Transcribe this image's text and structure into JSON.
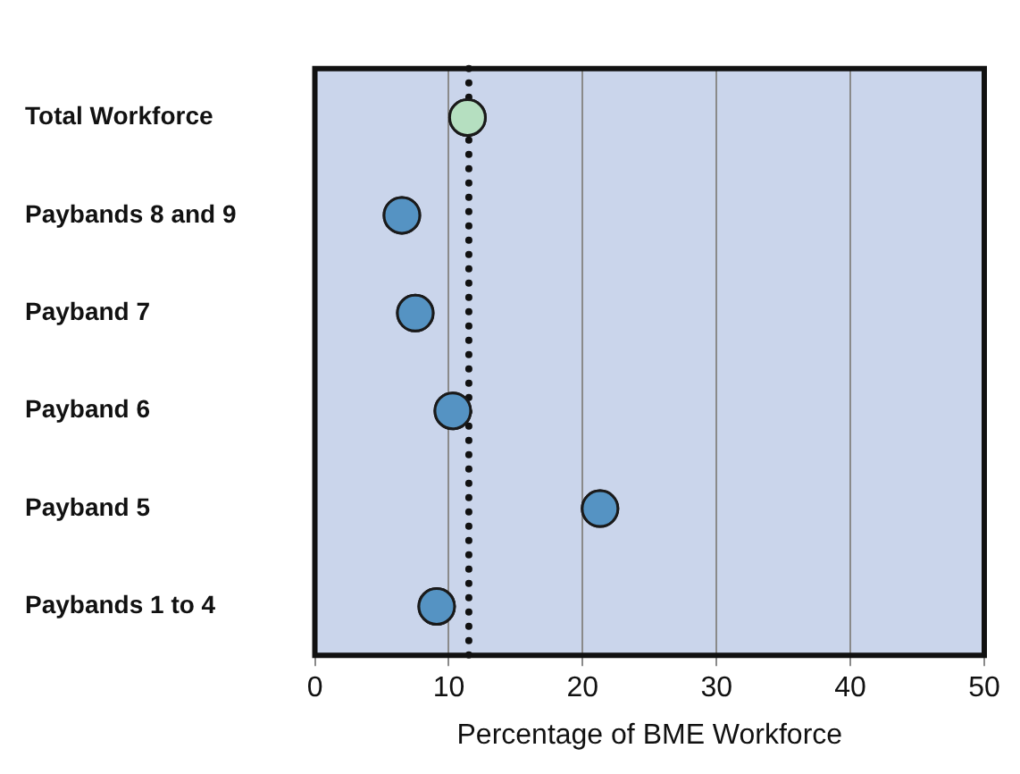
{
  "chart_data": {
    "type": "scatter",
    "orientation": "horizontal",
    "xlabel": "Percentage of BME Workforce",
    "categories": [
      "Total Workforce",
      "Paybands 8 and 9",
      "Payband 7",
      "Payband 6",
      "Payband 5",
      "Paybands 1 to 4"
    ],
    "values": [
      11.4,
      6.5,
      7.5,
      10.3,
      21.3,
      9.1
    ],
    "colors": [
      "#b5dfc0",
      "#5593c3",
      "#5593c3",
      "#5593c3",
      "#5593c3",
      "#5593c3"
    ],
    "xlim": [
      0,
      50
    ],
    "xticks": [
      0,
      10,
      20,
      30,
      40,
      50
    ],
    "grid": "x",
    "marker": "circle",
    "ref_lines": [
      {
        "axis": "x",
        "value": 11.5,
        "color": "#111111",
        "line_style": "dotted"
      }
    ]
  }
}
